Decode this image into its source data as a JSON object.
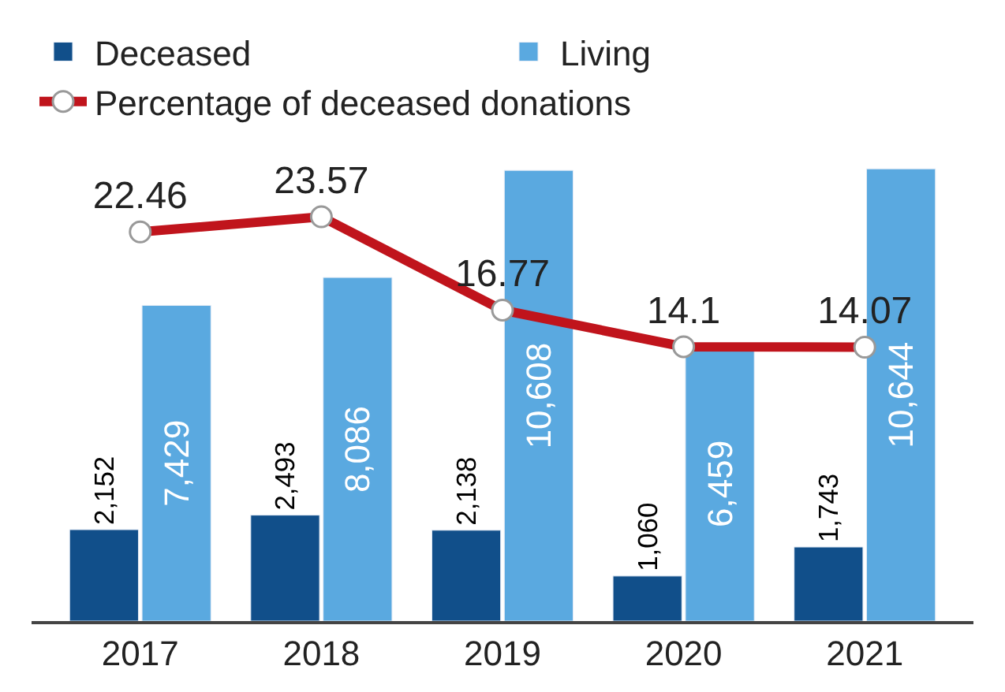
{
  "chart_data": {
    "type": "bar",
    "categories": [
      "2017",
      "2018",
      "2019",
      "2020",
      "2021"
    ],
    "series": [
      {
        "name": "Deceased",
        "color": "#114f8a",
        "values": [
          2152,
          2493,
          2138,
          1060,
          1743
        ],
        "value_labels": [
          "2,152",
          "2,493",
          "2,138",
          "1,060",
          "1,743"
        ]
      },
      {
        "name": "Living",
        "color": "#5aa9e0",
        "values": [
          7429,
          8086,
          10608,
          6459,
          10644
        ],
        "value_labels": [
          "7,429",
          "8,086",
          "10,608",
          "6,459",
          "10,644"
        ]
      },
      {
        "name": "Percentage of deceased donations",
        "type": "line",
        "axis": "y2",
        "color": "#c0141c",
        "marker": "circle",
        "values": [
          22.46,
          23.57,
          16.77,
          14.1,
          14.07
        ],
        "value_labels": [
          "22.46",
          "23.57",
          "16.77",
          "14.1",
          "14.07"
        ]
      }
    ],
    "tick_labels": "x",
    "legend": "top"
  }
}
